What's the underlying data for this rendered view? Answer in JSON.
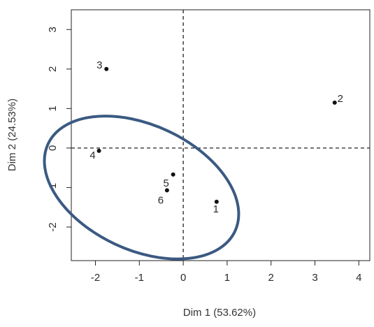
{
  "chart_data": {
    "type": "scatter",
    "title": "",
    "xlabel": "Dim 1 (53.62%)",
    "ylabel": "Dim 2 (24.53%)",
    "xlim": [
      -2.55,
      4.25
    ],
    "ylim": [
      -2.85,
      3.5
    ],
    "xticks": [
      -2,
      -1,
      0,
      1,
      2,
      3,
      4
    ],
    "yticks": [
      -2,
      -1,
      0,
      1,
      2,
      3
    ],
    "reference_lines": {
      "x": 0,
      "y": 0,
      "style": "dashed"
    },
    "points": [
      {
        "label": "1",
        "x": 0.76,
        "y": -1.36
      },
      {
        "label": "2",
        "x": 3.45,
        "y": 1.15
      },
      {
        "label": "3",
        "x": -1.75,
        "y": 2.0
      },
      {
        "label": "4",
        "x": -1.92,
        "y": -0.07
      },
      {
        "label": "5",
        "x": -0.23,
        "y": -0.67
      },
      {
        "label": "6",
        "x": -0.37,
        "y": -1.07
      }
    ],
    "annotation": {
      "shape": "ellipse",
      "color": "#3b5a82",
      "center": [
        -0.95,
        -1.0
      ],
      "radii": [
        2.35,
        1.02
      ],
      "rotation_deg": -25
    },
    "grid": false,
    "legend": "none"
  }
}
